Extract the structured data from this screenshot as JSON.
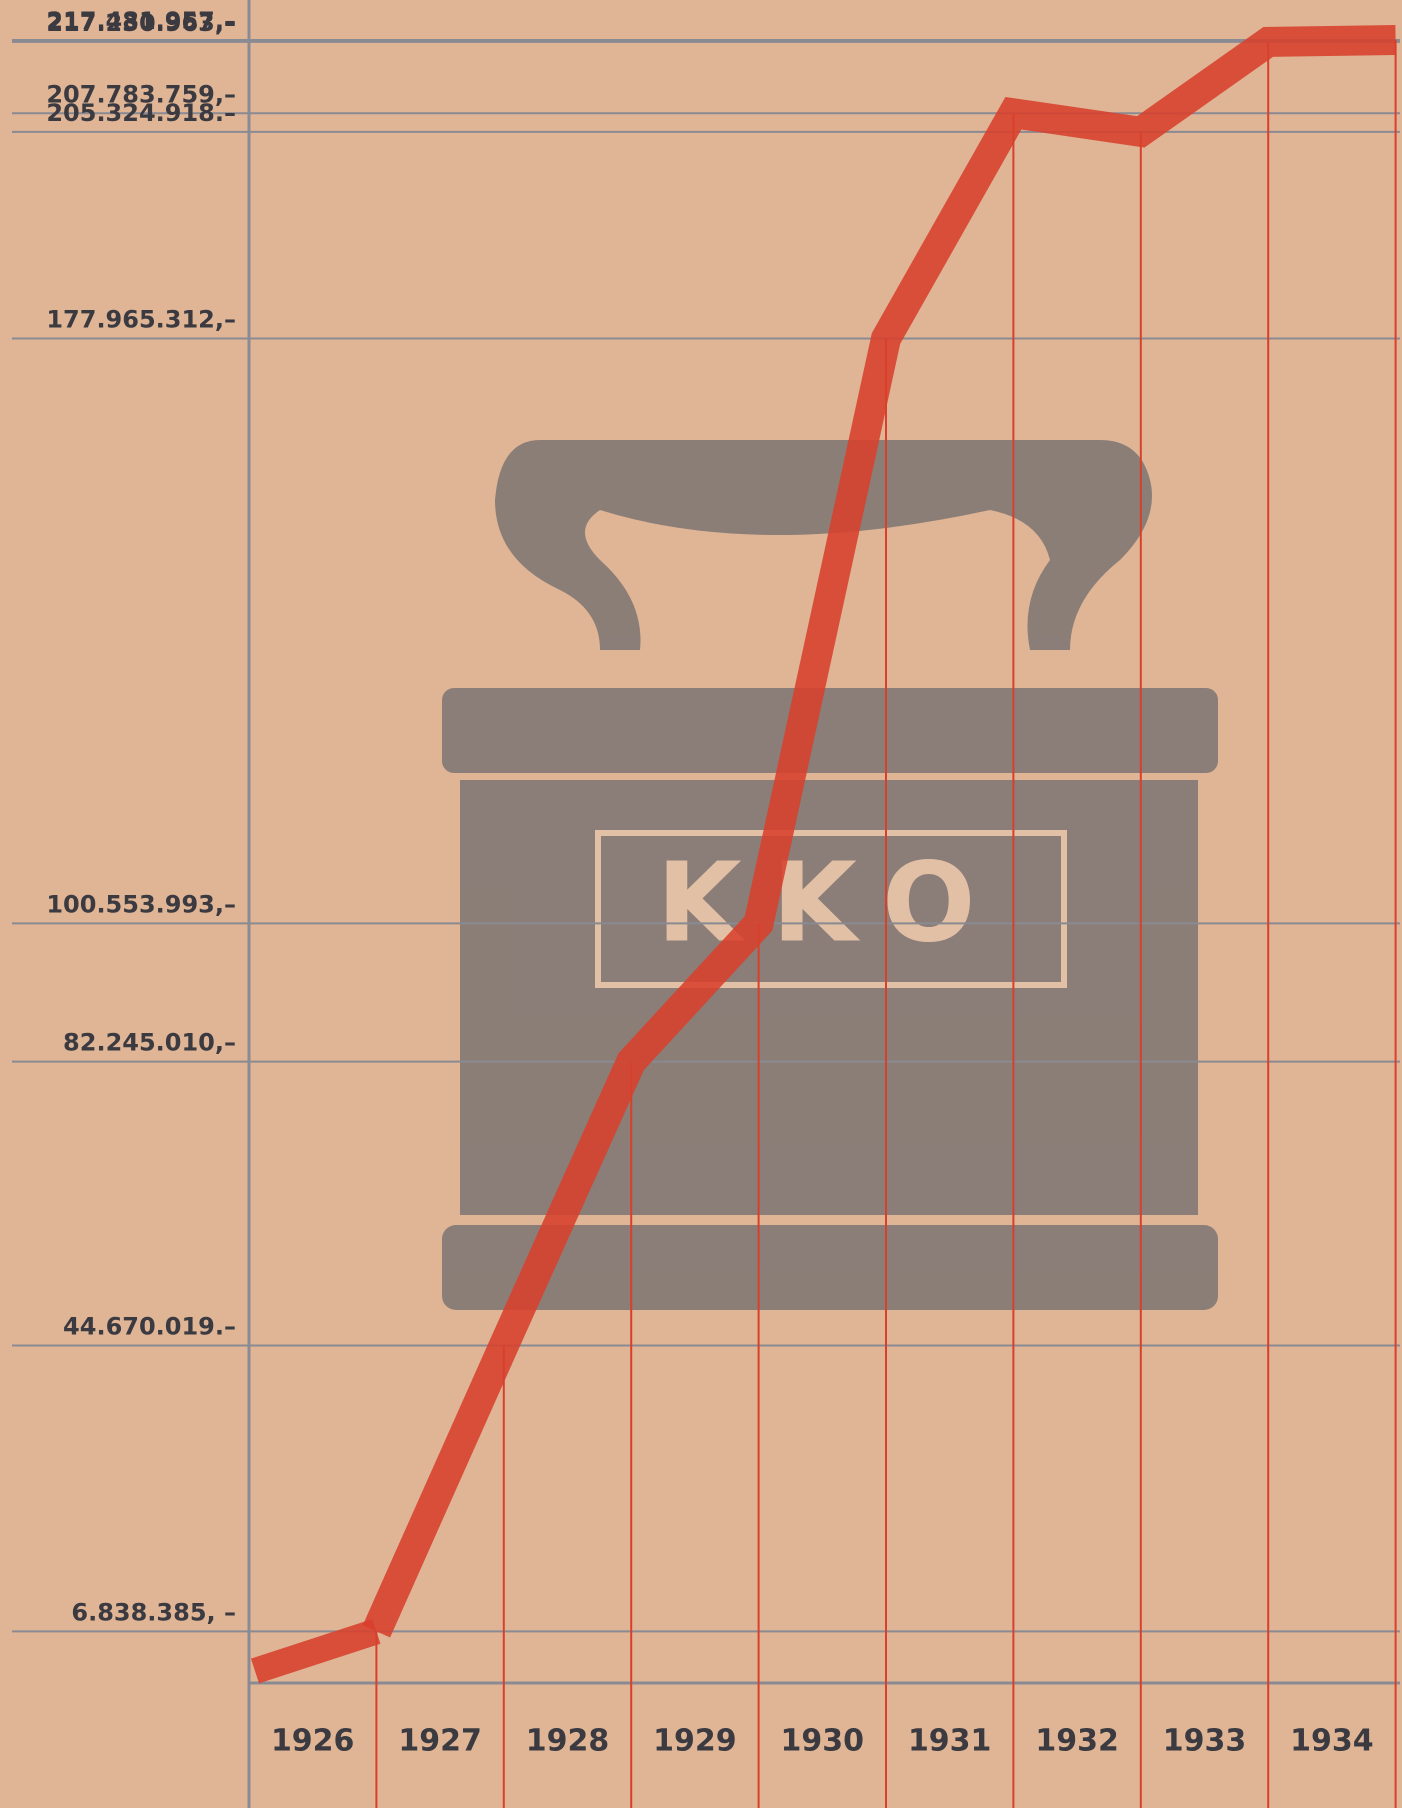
{
  "chart_data": {
    "type": "line",
    "categories": [
      "1926",
      "1927",
      "1928",
      "1929",
      "1930",
      "1931",
      "1932",
      "1933",
      "1934"
    ],
    "series": [
      {
        "color": "#d8402c",
        "values": [
          6838385,
          44670019,
          82245010,
          100553993,
          177965312,
          207783759,
          205324918,
          217230963,
          217481957
        ]
      }
    ],
    "ylim": [
      0,
      217481957
    ],
    "yticks": [
      {
        "value": 217481957,
        "label": "217.481.957,–"
      },
      {
        "value": 217230963,
        "label": "217.230.963,–"
      },
      {
        "value": 207783759,
        "label": "207.783.759,–"
      },
      {
        "value": 205324918,
        "label": "205.324.918.–"
      },
      {
        "value": 177965312,
        "label": "177.965.312,–"
      },
      {
        "value": 100553993,
        "label": "100.553.993,–"
      },
      {
        "value": 82245010,
        "label": "82.245.010,–"
      },
      {
        "value": 44670019,
        "label": "44.670.019.–"
      },
      {
        "value": 6838385,
        "label": "6.838.385, –"
      }
    ],
    "grid": true,
    "annotation": "KKO"
  }
}
